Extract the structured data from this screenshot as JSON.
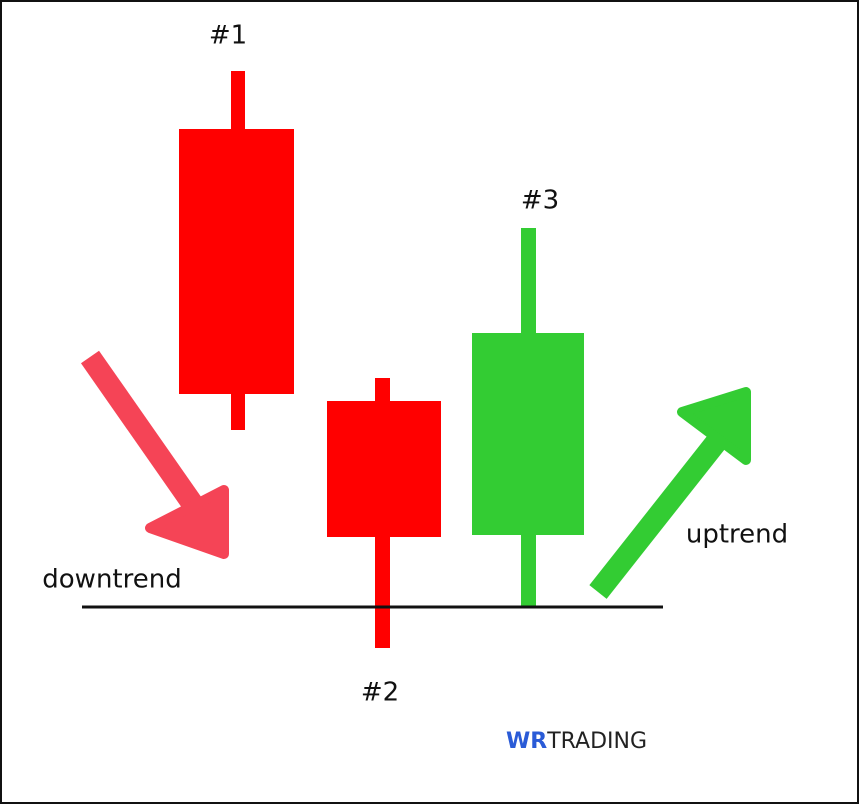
{
  "candles": [
    {
      "label": "#1"
    },
    {
      "label": "#2"
    },
    {
      "label": "#3"
    }
  ],
  "trends": {
    "down": "downtrend",
    "up": "uptrend"
  },
  "logo": {
    "mark": "WR",
    "name": "TRADING"
  }
}
